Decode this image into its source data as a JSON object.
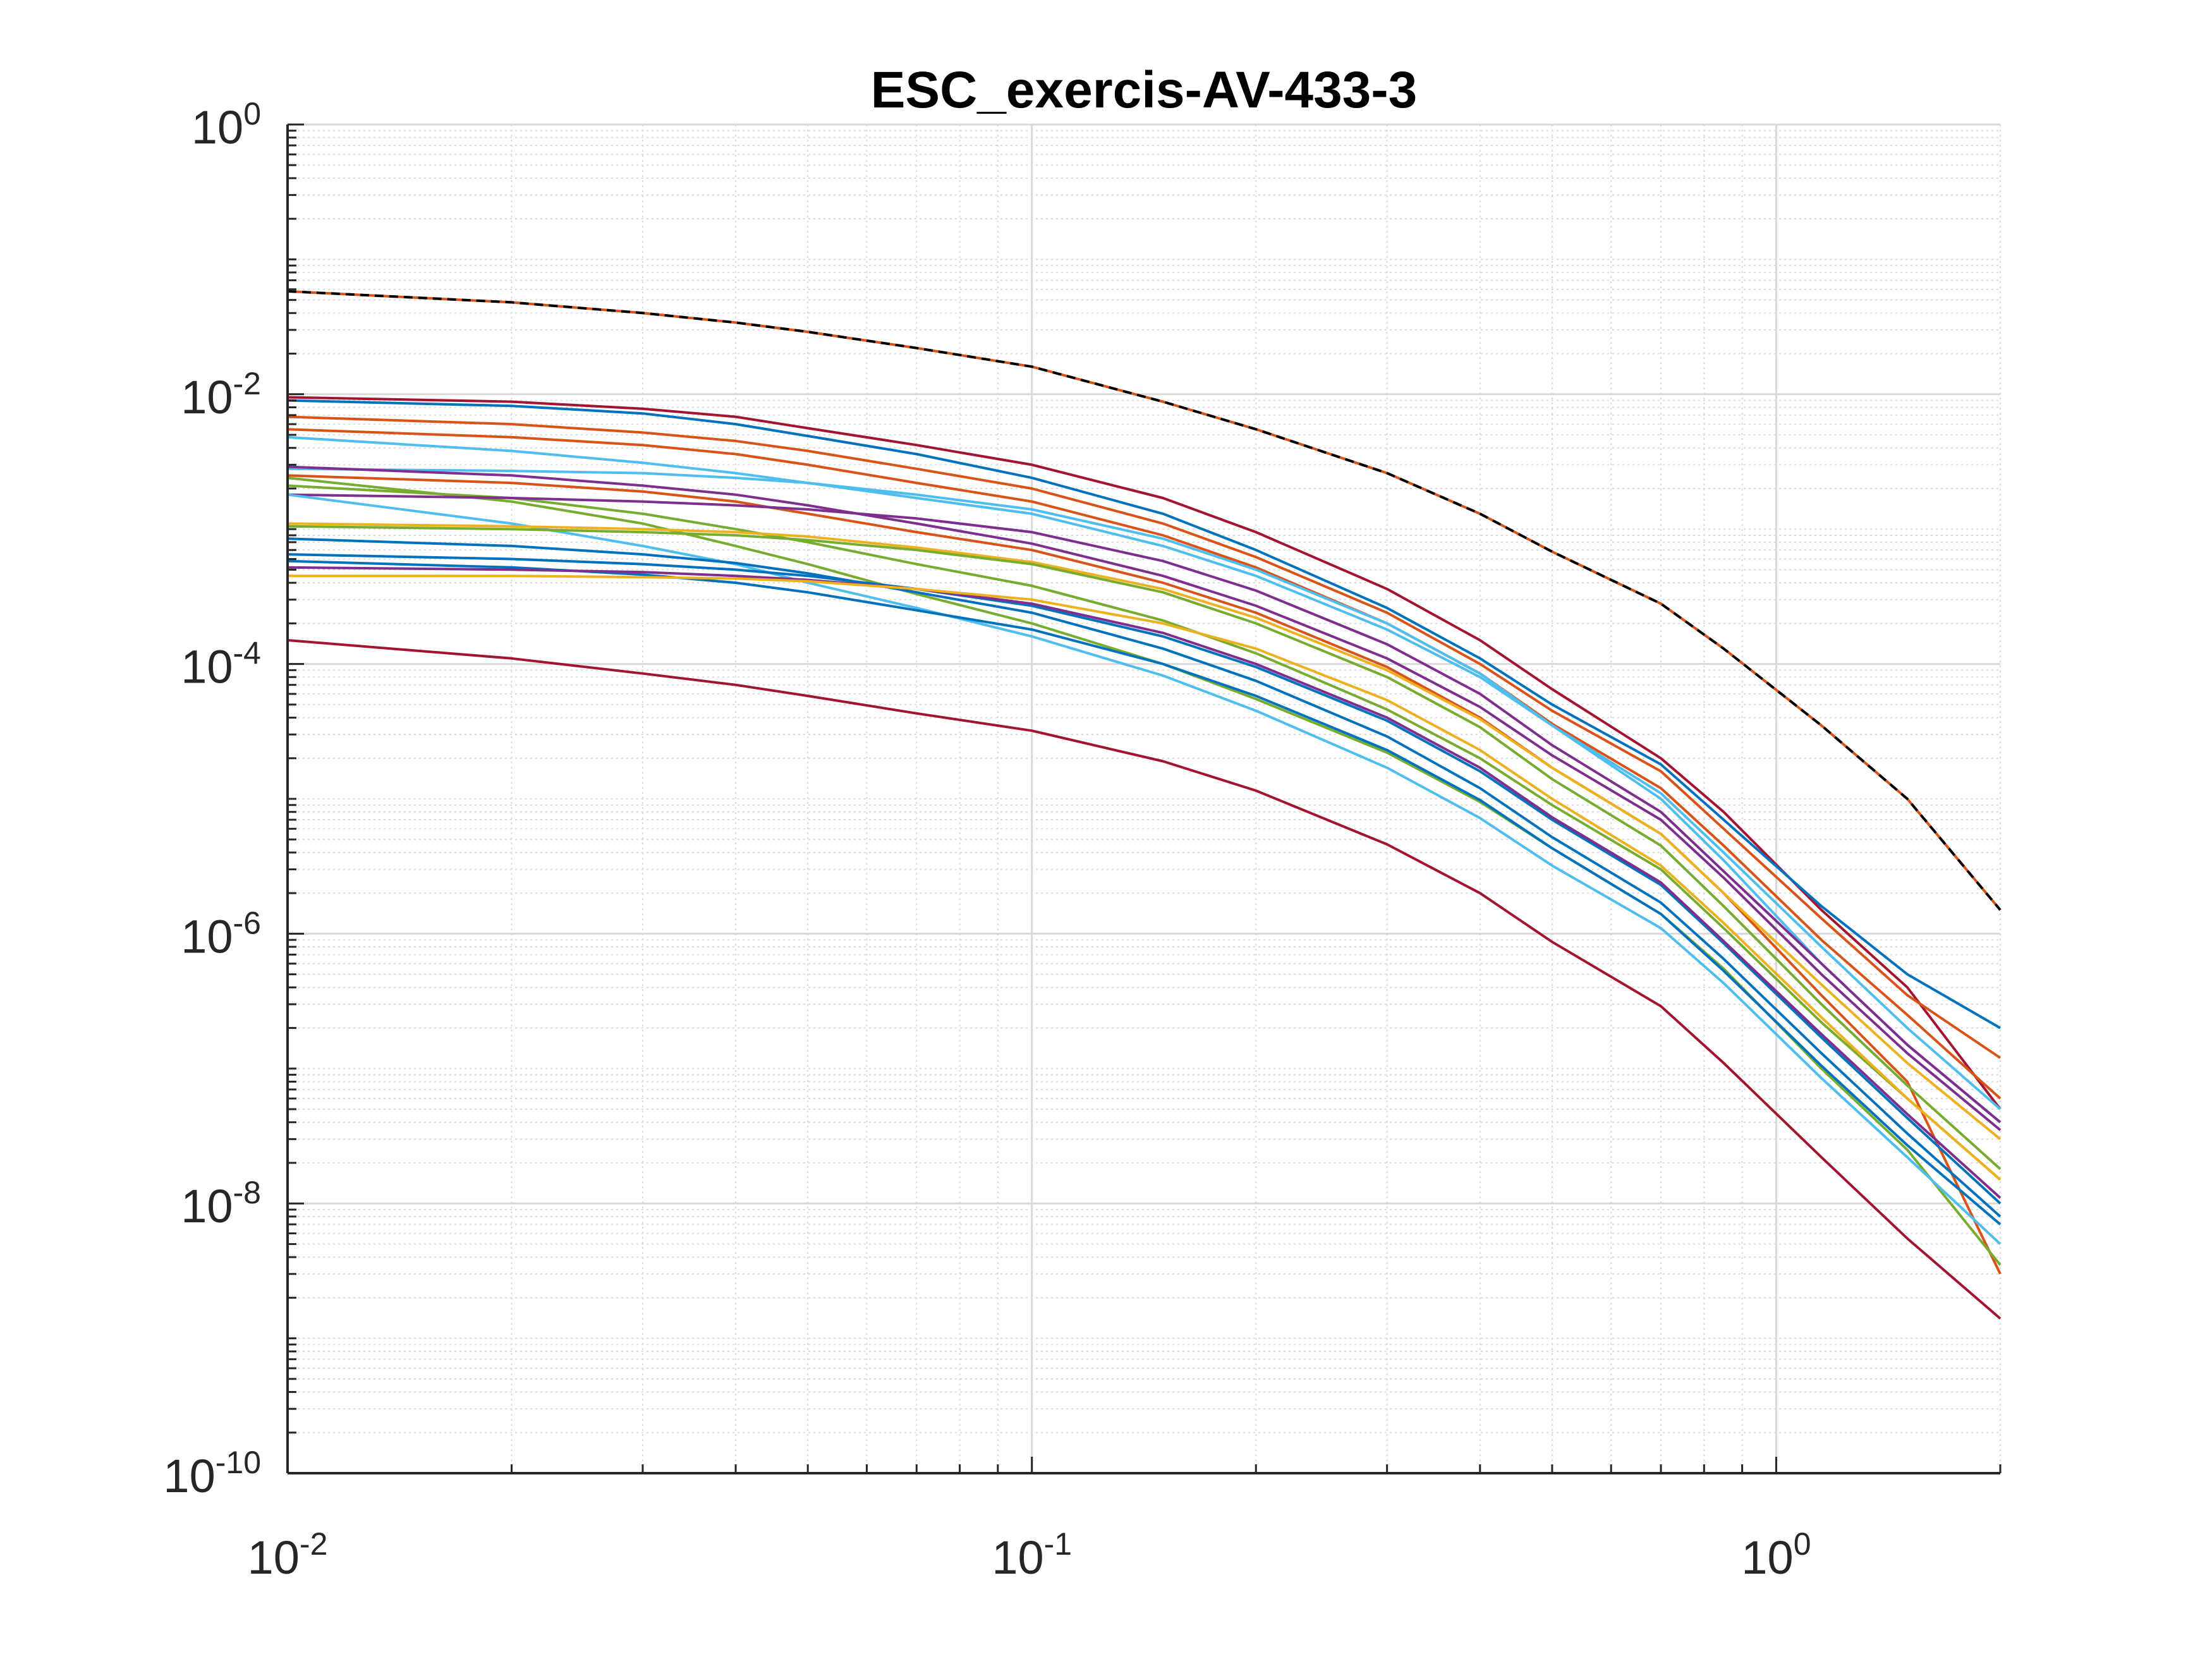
{
  "chart_data": {
    "type": "line",
    "title": "ESC_exercis-AV-433-3",
    "xlabel": "",
    "ylabel": "",
    "xscale": "log",
    "yscale": "log",
    "xlim": [
      0.01,
      2.0
    ],
    "ylim": [
      1e-10,
      1
    ],
    "grid": true,
    "minor_grid": true,
    "legend": "none",
    "x_tick_labels": [
      {
        "value": 0.01,
        "base": "10",
        "exp": "-2"
      },
      {
        "value": 0.1,
        "base": "10",
        "exp": "-1"
      },
      {
        "value": 1,
        "base": "10",
        "exp": "0"
      }
    ],
    "y_tick_labels": [
      {
        "value": 1e-10,
        "base": "10",
        "exp": "-10"
      },
      {
        "value": 1e-08,
        "base": "10",
        "exp": "-8"
      },
      {
        "value": 1e-06,
        "base": "10",
        "exp": "-6"
      },
      {
        "value": 0.0001,
        "base": "10",
        "exp": "-4"
      },
      {
        "value": 0.01,
        "base": "10",
        "exp": "-2"
      },
      {
        "value": 1,
        "base": "10",
        "exp": "0"
      }
    ],
    "x": [
      0.01,
      0.02,
      0.03,
      0.04,
      0.05,
      0.07,
      0.1,
      0.15,
      0.2,
      0.3,
      0.4,
      0.5,
      0.7,
      0.85,
      1.15,
      1.5,
      2.0
    ],
    "series": [
      {
        "color": "#000000",
        "dash": true,
        "values": [
          0.058,
          0.048,
          0.04,
          0.034,
          0.029,
          0.022,
          0.016,
          0.0088,
          0.0055,
          0.0026,
          0.0013,
          0.00068,
          0.00028,
          0.00013,
          3.5e-05,
          1e-05,
          1.5e-06
        ]
      },
      {
        "color": "#d95319",
        "dash": false,
        "values": [
          0.058,
          0.048,
          0.04,
          0.034,
          0.029,
          0.022,
          0.016,
          0.0088,
          0.0055,
          0.0026,
          0.0013,
          0.00068,
          0.00028,
          0.00013,
          3.5e-05,
          1e-05,
          1.5e-06
        ]
      },
      {
        "color": "#a2142f",
        "dash": false,
        "values": [
          0.0095,
          0.0088,
          0.0078,
          0.0068,
          0.0056,
          0.0042,
          0.003,
          0.0017,
          0.00095,
          0.00036,
          0.00015,
          6.5e-05,
          2e-05,
          8e-06,
          1.5e-06,
          4e-07,
          5e-08
        ]
      },
      {
        "color": "#0072bd",
        "dash": false,
        "values": [
          0.009,
          0.0082,
          0.0072,
          0.006,
          0.0049,
          0.0036,
          0.0024,
          0.0013,
          0.0007,
          0.00026,
          0.00011,
          5e-05,
          1.8e-05,
          7e-06,
          1.6e-06,
          5e-07,
          2e-07
        ]
      },
      {
        "color": "#d95319",
        "dash": false,
        "values": [
          0.0068,
          0.006,
          0.0052,
          0.0045,
          0.0038,
          0.0028,
          0.002,
          0.0011,
          0.00062,
          0.00024,
          0.0001,
          4.5e-05,
          1.6e-05,
          6e-06,
          1.3e-06,
          3.5e-07,
          1.2e-07
        ]
      },
      {
        "color": "#d95319",
        "dash": false,
        "values": [
          0.0055,
          0.0048,
          0.0042,
          0.0036,
          0.003,
          0.0022,
          0.0016,
          0.0009,
          0.00052,
          0.0002,
          8.5e-05,
          3.6e-05,
          1.2e-05,
          4.5e-06,
          9e-07,
          2.5e-07,
          6e-08
        ]
      },
      {
        "color": "#4dbeee",
        "dash": false,
        "values": [
          0.0048,
          0.0038,
          0.0031,
          0.0026,
          0.0022,
          0.0017,
          0.0013,
          0.00075,
          0.00045,
          0.00018,
          8e-05,
          3.5e-05,
          1.1e-05,
          4e-06,
          8e-07,
          2e-07,
          5e-08
        ]
      },
      {
        "color": "#4dbeee",
        "dash": false,
        "values": [
          0.0028,
          0.0027,
          0.0026,
          0.0024,
          0.0022,
          0.0018,
          0.0014,
          0.00085,
          0.0005,
          0.0002,
          8.5e-05,
          3.5e-05,
          1e-05,
          3.5e-06,
          6e-07,
          1.5e-07,
          4e-08
        ]
      },
      {
        "color": "#7e2f8e",
        "dash": false,
        "values": [
          0.0029,
          0.0025,
          0.0021,
          0.0018,
          0.0015,
          0.0011,
          0.00078,
          0.00045,
          0.00027,
          0.00011,
          4.8e-05,
          2.1e-05,
          7e-06,
          2.6e-06,
          5e-07,
          1.3e-07,
          3.5e-08
        ]
      },
      {
        "color": "#d95319",
        "dash": false,
        "values": [
          0.0025,
          0.0022,
          0.0019,
          0.0016,
          0.0013,
          0.00095,
          0.0007,
          0.0004,
          0.00024,
          9.5e-05,
          4e-05,
          1.7e-05,
          5.5e-06,
          2e-06,
          3.5e-07,
          8e-08,
          3e-09
        ]
      },
      {
        "color": "#77ac30",
        "dash": false,
        "values": [
          0.0024,
          0.0016,
          0.0011,
          0.00075,
          0.00055,
          0.00033,
          0.0002,
          0.0001,
          5.5e-05,
          2.2e-05,
          9.5e-06,
          4.3e-06,
          1.4e-06,
          5.5e-07,
          1e-07,
          2.5e-08,
          3.5e-09
        ]
      },
      {
        "color": "#77ac30",
        "dash": false,
        "values": [
          0.0021,
          0.0017,
          0.0013,
          0.001,
          0.0008,
          0.00055,
          0.00038,
          0.00021,
          0.00012,
          4.6e-05,
          2e-05,
          9e-06,
          3e-06,
          1.1e-06,
          2.2e-07,
          6e-08,
          1.5e-08
        ]
      },
      {
        "color": "#7e2f8e",
        "dash": false,
        "values": [
          0.0018,
          0.0017,
          0.0016,
          0.0015,
          0.0014,
          0.0012,
          0.00095,
          0.00058,
          0.00035,
          0.00014,
          6e-05,
          2.5e-05,
          8e-06,
          2.9e-06,
          6e-07,
          1.5e-07,
          4e-08
        ]
      },
      {
        "color": "#4dbeee",
        "dash": false,
        "values": [
          0.0018,
          0.0011,
          0.00075,
          0.00055,
          0.0004,
          0.00026,
          0.00016,
          8.2e-05,
          4.5e-05,
          1.7e-05,
          7.2e-06,
          3.2e-06,
          1.1e-06,
          4.3e-07,
          8.5e-08,
          2.2e-08,
          5e-09
        ]
      },
      {
        "color": "#edb120",
        "dash": false,
        "values": [
          0.0011,
          0.00105,
          0.001,
          0.00095,
          0.00088,
          0.00073,
          0.00057,
          0.00036,
          0.00022,
          9e-05,
          3.9e-05,
          1.7e-05,
          5.5e-06,
          2e-06,
          4.2e-07,
          1.1e-07,
          3e-08
        ]
      },
      {
        "color": "#77ac30",
        "dash": false,
        "values": [
          0.00105,
          0.001,
          0.00095,
          0.0009,
          0.00083,
          0.0007,
          0.00055,
          0.00034,
          0.0002,
          8e-05,
          3.4e-05,
          1.4e-05,
          4.5e-06,
          1.6e-06,
          3e-07,
          7.5e-08,
          1.8e-08
        ]
      },
      {
        "color": "#0072bd",
        "dash": false,
        "values": [
          0.00085,
          0.00075,
          0.00065,
          0.00056,
          0.00047,
          0.00034,
          0.00024,
          0.00013,
          7.5e-05,
          2.9e-05,
          1.2e-05,
          5.2e-06,
          1.7e-06,
          6.5e-07,
          1.3e-07,
          3.3e-08,
          8e-09
        ]
      },
      {
        "color": "#0072bd",
        "dash": false,
        "values": [
          0.00065,
          0.0006,
          0.00055,
          0.0005,
          0.00045,
          0.00036,
          0.00027,
          0.00016,
          9.5e-05,
          3.8e-05,
          1.6e-05,
          7e-06,
          2.3e-06,
          8.5e-07,
          1.7e-07,
          4.3e-08,
          1e-08
        ]
      },
      {
        "color": "#0072bd",
        "dash": false,
        "values": [
          0.00058,
          0.00052,
          0.00046,
          0.0004,
          0.00034,
          0.00025,
          0.00018,
          0.0001,
          5.8e-05,
          2.3e-05,
          9.8e-06,
          4.3e-06,
          1.4e-06,
          5.3e-07,
          1.05e-07,
          2.7e-08,
          7e-09
        ]
      },
      {
        "color": "#7e2f8e",
        "dash": false,
        "values": [
          0.00052,
          0.0005,
          0.00048,
          0.00045,
          0.00042,
          0.00036,
          0.00028,
          0.00017,
          0.0001,
          4e-05,
          1.7e-05,
          7.3e-06,
          2.4e-06,
          8.8e-07,
          1.8e-07,
          4.6e-08,
          1.1e-08
        ]
      },
      {
        "color": "#edb120",
        "dash": false,
        "values": [
          0.00045,
          0.00045,
          0.00044,
          0.00043,
          0.00041,
          0.00036,
          0.0003,
          0.0002,
          0.00013,
          5.4e-05,
          2.3e-05,
          1e-05,
          3.2e-06,
          1.2e-06,
          2.4e-07,
          6e-08,
          1.5e-08
        ]
      },
      {
        "color": "#a2142f",
        "dash": false,
        "values": [
          0.00015,
          0.00011,
          8.5e-05,
          7e-05,
          5.8e-05,
          4.3e-05,
          3.2e-05,
          1.9e-05,
          1.15e-05,
          4.6e-06,
          2e-06,
          8.7e-07,
          2.9e-07,
          1.1e-07,
          2.2e-08,
          5.5e-09,
          1.4e-09
        ]
      }
    ]
  }
}
